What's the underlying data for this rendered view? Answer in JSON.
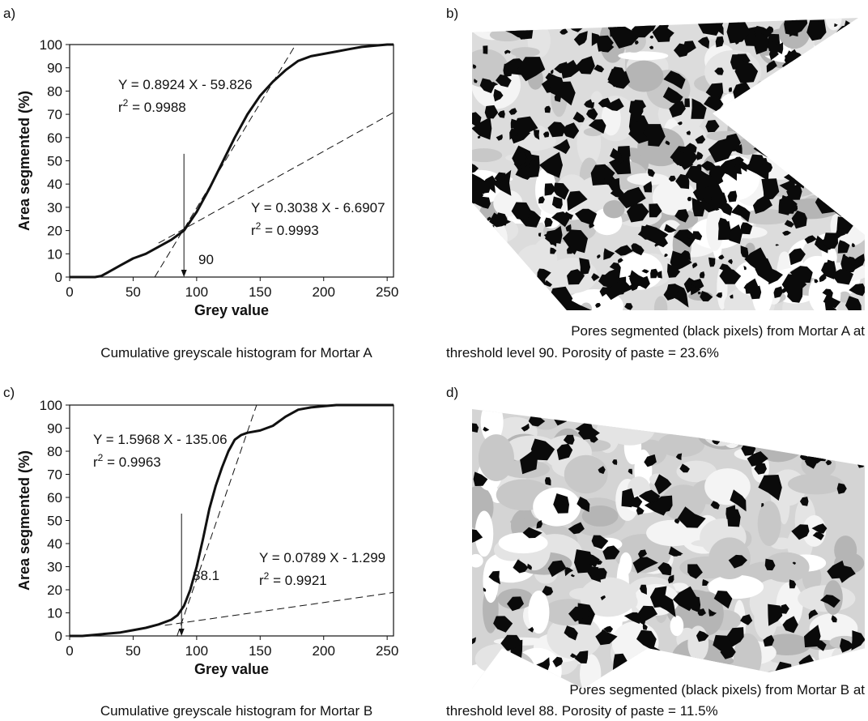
{
  "figure": {
    "panel_labels": [
      "a)",
      "b)",
      "c)",
      "d)"
    ],
    "captions": [
      "Cumulative greyscale histogram for Mortar A",
      "Cumulative greyscale histogram for Mortar B"
    ],
    "image_captions": [
      [
        "Pores segmented (black pixels) from Mortar A at",
        "threshold level 90. Porosity of paste = 23.6%"
      ],
      [
        "Pores segmented (black pixels) from Mortar B at",
        "threshold level 88. Porosity of paste = 11.5%"
      ]
    ]
  },
  "chart_data": [
    {
      "type": "line",
      "xlabel": "Grey value",
      "ylabel": "Area segmented (%)",
      "xlim": [
        0,
        255
      ],
      "ylim": [
        0,
        100
      ],
      "xticks": [
        0,
        50,
        100,
        150,
        200,
        250
      ],
      "yticks": [
        0,
        10,
        20,
        30,
        40,
        50,
        60,
        70,
        80,
        90,
        100
      ],
      "color": "#111111",
      "x": [
        0,
        20,
        25,
        30,
        40,
        50,
        60,
        70,
        80,
        90,
        100,
        110,
        120,
        130,
        140,
        150,
        160,
        170,
        180,
        190,
        200,
        210,
        220,
        230,
        240,
        250,
        255
      ],
      "values": [
        0,
        0,
        0.5,
        2,
        5,
        8,
        10,
        13,
        16,
        20,
        28,
        38,
        49,
        60,
        70,
        78,
        84,
        89,
        93,
        95,
        96,
        97,
        98,
        99,
        99.5,
        100,
        100
      ],
      "r_label": "r",
      "r_exponent": "2",
      "fits": [
        {
          "x": [
            67,
            178
          ],
          "values": [
            0,
            100
          ],
          "equation": "Y = 0.8924 X - 59.826",
          "r_squared": " = 0.9988"
        },
        {
          "x": [
            70,
            255
          ],
          "values": [
            14.6,
            70.8
          ],
          "equation": "Y = 0.3038 X - 6.6907",
          "r_squared": " = 0.9993"
        }
      ],
      "threshold": {
        "value": 90,
        "top": 53,
        "label": "90"
      }
    },
    {
      "type": "line",
      "xlabel": "Grey value",
      "ylabel": "Area segmented (%)",
      "xlim": [
        0,
        255
      ],
      "ylim": [
        0,
        100
      ],
      "xticks": [
        0,
        50,
        100,
        150,
        200,
        250
      ],
      "yticks": [
        0,
        10,
        20,
        30,
        40,
        50,
        60,
        70,
        80,
        90,
        100
      ],
      "color": "#111111",
      "x": [
        0,
        10,
        20,
        30,
        40,
        50,
        60,
        70,
        80,
        85,
        90,
        95,
        100,
        105,
        110,
        115,
        120,
        125,
        130,
        135,
        140,
        150,
        160,
        170,
        180,
        190,
        200,
        210,
        220,
        255
      ],
      "values": [
        0,
        0,
        0.5,
        1,
        1.5,
        2.5,
        3.5,
        5,
        7,
        9,
        13,
        20,
        30,
        42,
        55,
        65,
        73,
        80,
        85,
        87,
        88,
        89,
        91,
        95,
        98,
        99,
        99.5,
        100,
        100,
        100
      ],
      "r_label": "r",
      "r_exponent": "2",
      "fits": [
        {
          "x": [
            84.6,
            147.2
          ],
          "values": [
            0,
            100
          ],
          "equation": "Y = 1.5968 X - 135.06",
          "r_squared": " = 0.9963"
        },
        {
          "x": [
            75,
            255
          ],
          "values": [
            4.6,
            18.8
          ],
          "equation": "Y = 0.0789 X - 1.299",
          "r_squared": " = 0.9921"
        }
      ],
      "threshold": {
        "value": 88.1,
        "top": 53,
        "label": "88.1"
      }
    }
  ]
}
